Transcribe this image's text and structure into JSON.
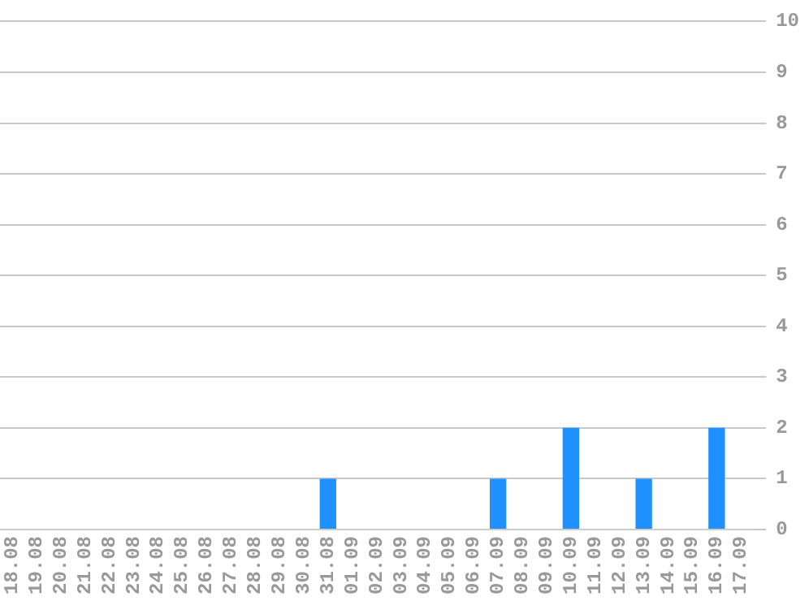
{
  "chart_data": {
    "type": "bar",
    "categories": [
      "18.08",
      "19.08",
      "20.08",
      "21.08",
      "22.08",
      "23.08",
      "24.08",
      "25.08",
      "26.08",
      "27.08",
      "28.08",
      "29.08",
      "30.08",
      "31.08",
      "01.09",
      "02.09",
      "03.09",
      "04.09",
      "05.09",
      "06.09",
      "07.09",
      "08.09",
      "09.09",
      "10.09",
      "11.09",
      "12.09",
      "13.09",
      "14.09",
      "15.09",
      "16.09",
      "17.09"
    ],
    "values": [
      0,
      0,
      0,
      0,
      0,
      0,
      0,
      0,
      0,
      0,
      0,
      0,
      0,
      1,
      0,
      0,
      0,
      0,
      0,
      0,
      1,
      0,
      0,
      2,
      0,
      0,
      1,
      0,
      0,
      2,
      0
    ],
    "color": "#1e90ff",
    "ylim": [
      0,
      10
    ],
    "yticks": [
      0,
      1,
      2,
      3,
      4,
      5,
      6,
      7,
      8,
      9,
      10
    ],
    "grid": "y",
    "legend": false
  }
}
